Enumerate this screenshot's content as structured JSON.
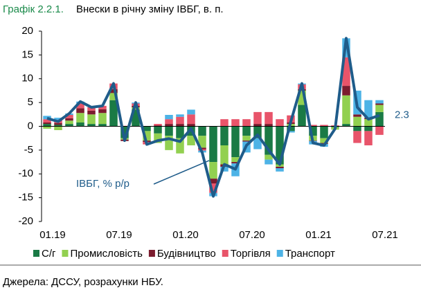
{
  "chart_data": {
    "type": "bar",
    "stacked": true,
    "title_prefix": "Графік 2.2.1.",
    "title": "Внески в річну зміну ІВБГ, в. п.",
    "source": "Джерела: ДССУ, розрахунки НБУ.",
    "categories": [
      "01.19",
      null,
      null,
      null,
      null,
      null,
      "07.19",
      null,
      null,
      null,
      null,
      null,
      "01.20",
      null,
      null,
      null,
      null,
      null,
      "07.20",
      null,
      null,
      null,
      null,
      null,
      "01.21",
      null,
      null,
      null,
      null,
      null,
      "07.21"
    ],
    "ylim": [
      -20,
      20
    ],
    "yticks": [
      -20,
      -15,
      -10,
      -5,
      0,
      5,
      10,
      15,
      20
    ],
    "grid": false,
    "series": [
      {
        "name": "С/г",
        "color": "#1a7a45",
        "values": [
          0.5,
          0.3,
          0.5,
          0.8,
          0.5,
          0.5,
          5.5,
          -2.5,
          3.5,
          -1,
          -1.5,
          -2,
          -2.5,
          -2,
          -2,
          -7.5,
          -4,
          -6.5,
          -2,
          -2.5,
          -6,
          -8,
          -1,
          4.5,
          -2,
          -2.5,
          -0.2,
          0.5,
          -1,
          -1,
          3
        ]
      },
      {
        "name": "Промисловість",
        "color": "#92d050",
        "values": [
          -0.5,
          -0.8,
          0.7,
          2,
          2,
          2.3,
          1.5,
          -0.3,
          0.5,
          -2,
          -2,
          -3,
          -3.2,
          -2,
          -2.5,
          -3.5,
          -4,
          -1,
          -1,
          0,
          -1,
          -0.5,
          0.5,
          3,
          -1,
          -1,
          -0.5,
          6,
          2,
          1.5,
          1.5
        ]
      },
      {
        "name": "Будівництво",
        "color": "#7b1c2e",
        "values": [
          0.3,
          0.4,
          0.5,
          1,
          0.8,
          0.8,
          0.8,
          -0.3,
          0.3,
          -0.3,
          0.2,
          0.5,
          0.5,
          0.5,
          -0.3,
          -1,
          -0.5,
          -0.3,
          -0.2,
          0.5,
          0.5,
          -0.3,
          0.3,
          0.3,
          -0.1,
          -0.2,
          0,
          2,
          0.5,
          0.3,
          0.3
        ]
      },
      {
        "name": "Торгівля",
        "color": "#e8546a",
        "values": [
          0.7,
          0.6,
          0.7,
          1,
          0.7,
          0.7,
          1.2,
          0.1,
          0.5,
          -0.5,
          0.3,
          1,
          1.5,
          2,
          -0.3,
          -2,
          1.5,
          1.5,
          1.5,
          2.5,
          2.5,
          1.5,
          1.5,
          1,
          0.3,
          0.3,
          0.2,
          6,
          -2.5,
          -3,
          -1.8
        ]
      },
      {
        "name": "Транспорт",
        "color": "#4db3e6",
        "values": [
          0.7,
          0.5,
          0.3,
          0.4,
          0,
          0,
          0,
          0,
          0.2,
          0,
          0,
          0.9,
          0.5,
          1,
          -0.4,
          -0.7,
          -1,
          -2.7,
          -2.3,
          -2.3,
          -1,
          -0.7,
          -0.3,
          0.2,
          -0.7,
          -0.6,
          0,
          4,
          5,
          3.7,
          0.7
        ]
      },
      {
        "name": "ІВБГ, % р/р",
        "type": "line",
        "color": "#1f5c8a",
        "values": [
          1.7,
          1.0,
          2.7,
          5.2,
          4.0,
          4.3,
          9.0,
          -3.0,
          5.0,
          -3.8,
          -3.0,
          -2.6,
          -3.2,
          -0.5,
          -5.5,
          -14.7,
          -8.0,
          -9.0,
          -4.0,
          -1.8,
          -5.0,
          -8.0,
          1.0,
          9.0,
          -3.5,
          -4.0,
          -0.5,
          18.5,
          4.0,
          1.5,
          2.3
        ]
      }
    ]
  }
}
